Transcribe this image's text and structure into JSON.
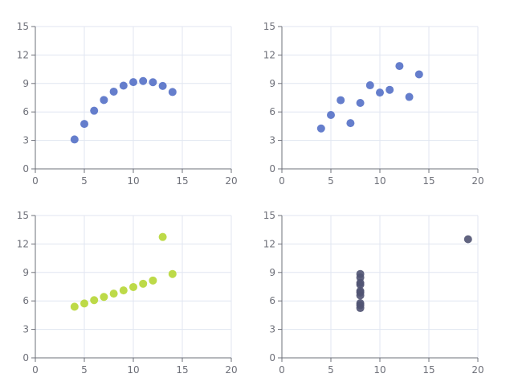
{
  "chart_data": [
    {
      "type": "scatter",
      "color": "#5470c6",
      "xlim": [
        0,
        20
      ],
      "ylim": [
        0,
        15
      ],
      "x_ticks": [
        "0",
        "5",
        "10",
        "15",
        "20"
      ],
      "y_ticks": [
        "0",
        "3",
        "6",
        "9",
        "12",
        "15"
      ],
      "grid": true,
      "points": [
        [
          4,
          3.1
        ],
        [
          5,
          4.74
        ],
        [
          6,
          6.13
        ],
        [
          7,
          7.26
        ],
        [
          8,
          8.14
        ],
        [
          9,
          8.77
        ],
        [
          10,
          9.14
        ],
        [
          11,
          9.26
        ],
        [
          12,
          9.13
        ],
        [
          13,
          8.74
        ],
        [
          14,
          8.1
        ]
      ]
    },
    {
      "type": "scatter",
      "color": "#5470c6",
      "xlim": [
        0,
        20
      ],
      "ylim": [
        0,
        15
      ],
      "x_ticks": [
        "0",
        "5",
        "10",
        "15",
        "20"
      ],
      "y_ticks": [
        "0",
        "3",
        "6",
        "9",
        "12",
        "15"
      ],
      "grid": true,
      "points": [
        [
          4,
          4.26
        ],
        [
          5,
          5.68
        ],
        [
          6,
          7.24
        ],
        [
          7,
          4.82
        ],
        [
          8,
          6.95
        ],
        [
          9,
          8.81
        ],
        [
          10,
          8.04
        ],
        [
          11,
          8.33
        ],
        [
          12,
          10.84
        ],
        [
          13,
          7.58
        ],
        [
          14,
          9.96
        ]
      ]
    },
    {
      "type": "scatter",
      "color": "#b6d634",
      "xlim": [
        0,
        20
      ],
      "ylim": [
        0,
        15
      ],
      "x_ticks": [
        "0",
        "5",
        "10",
        "15",
        "20"
      ],
      "y_ticks": [
        "0",
        "3",
        "6",
        "9",
        "12",
        "15"
      ],
      "grid": true,
      "points": [
        [
          4,
          5.39
        ],
        [
          5,
          5.73
        ],
        [
          6,
          6.08
        ],
        [
          7,
          6.42
        ],
        [
          8,
          6.77
        ],
        [
          9,
          7.11
        ],
        [
          10,
          7.46
        ],
        [
          11,
          7.81
        ],
        [
          12,
          8.15
        ],
        [
          13,
          12.74
        ],
        [
          14,
          8.84
        ]
      ]
    },
    {
      "type": "scatter",
      "color": "#505372",
      "xlim": [
        0,
        20
      ],
      "ylim": [
        0,
        15
      ],
      "x_ticks": [
        "0",
        "5",
        "10",
        "15",
        "20"
      ],
      "y_ticks": [
        "0",
        "3",
        "6",
        "9",
        "12",
        "15"
      ],
      "grid": true,
      "points": [
        [
          8,
          6.58
        ],
        [
          8,
          5.76
        ],
        [
          8,
          7.71
        ],
        [
          8,
          8.84
        ],
        [
          8,
          8.47
        ],
        [
          8,
          7.04
        ],
        [
          8,
          5.25
        ],
        [
          19,
          12.5
        ],
        [
          8,
          5.56
        ],
        [
          8,
          7.91
        ],
        [
          8,
          6.89
        ]
      ]
    }
  ]
}
